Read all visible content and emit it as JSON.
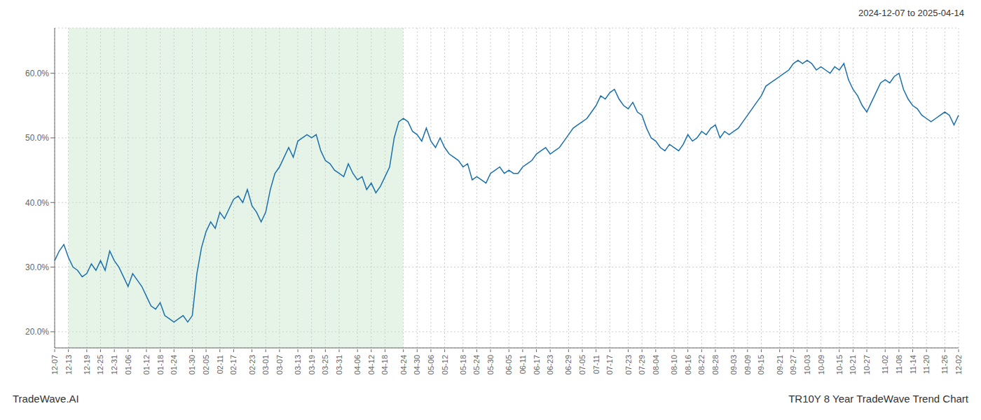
{
  "chart_data": {
    "type": "line",
    "title": "2024-12-07 to 2025-04-14",
    "annotations": [
      "TradeWave.AI",
      "TR10Y 8 Year TradeWave Trend Chart"
    ],
    "color": "#1a6fad",
    "grid": true,
    "ylim": [
      17.5,
      67.0
    ],
    "yticks": [
      {
        "value": 20.0,
        "label": "20.0%"
      },
      {
        "value": 30.0,
        "label": "30.0%"
      },
      {
        "value": 40.0,
        "label": "40.0%"
      },
      {
        "value": 50.0,
        "label": "50.0%"
      },
      {
        "value": 60.0,
        "label": "60.0%"
      }
    ],
    "shaded_span": {
      "start": "12-13",
      "end": "04-24",
      "color": "#c8e6c9"
    },
    "categories": [
      "12-07",
      null,
      null,
      "12-13",
      null,
      null,
      null,
      "12-19",
      null,
      null,
      "12-25",
      null,
      null,
      "12-31",
      null,
      null,
      "01-06",
      null,
      null,
      null,
      "01-12",
      null,
      null,
      "01-18",
      null,
      null,
      "01-24",
      null,
      null,
      null,
      "01-30",
      null,
      null,
      "02-05",
      null,
      null,
      "02-11",
      null,
      null,
      "02-17",
      null,
      null,
      null,
      "02-23",
      null,
      null,
      "03-01",
      null,
      null,
      "03-07",
      null,
      null,
      null,
      "03-13",
      null,
      null,
      "03-19",
      null,
      null,
      "03-25",
      null,
      null,
      "03-31",
      null,
      null,
      null,
      "04-06",
      null,
      null,
      "04-12",
      null,
      null,
      "04-18",
      null,
      null,
      null,
      "04-24",
      null,
      null,
      "04-30",
      null,
      null,
      "05-06",
      null,
      null,
      "05-12",
      null,
      null,
      null,
      "05-18",
      null,
      null,
      "05-24",
      null,
      null,
      "05-30",
      null,
      null,
      null,
      "06-05",
      null,
      null,
      "06-11",
      null,
      null,
      "06-17",
      null,
      null,
      "06-23",
      null,
      null,
      null,
      "06-29",
      null,
      null,
      "07-05",
      null,
      null,
      "07-11",
      null,
      null,
      "07-17",
      null,
      null,
      null,
      "07-23",
      null,
      null,
      "07-29",
      null,
      null,
      "08-04",
      null,
      null,
      null,
      "08-10",
      null,
      null,
      "08-16",
      null,
      null,
      "08-22",
      null,
      null,
      "08-28",
      null,
      null,
      null,
      "09-03",
      null,
      null,
      "09-09",
      null,
      null,
      "09-15",
      null,
      null,
      null,
      "09-21",
      null,
      null,
      "09-27",
      null,
      null,
      "10-03",
      null,
      null,
      "10-09",
      null,
      null,
      null,
      "10-15",
      null,
      null,
      "10-21",
      null,
      null,
      "10-27",
      null,
      null,
      null,
      "11-02",
      null,
      null,
      "11-08",
      null,
      null,
      "11-14",
      null,
      null,
      "11-20",
      null,
      null,
      null,
      "11-26",
      null,
      null,
      "12-02"
    ],
    "values": [
      31.0,
      32.5,
      33.5,
      31.5,
      30.0,
      29.5,
      28.5,
      29.0,
      30.5,
      29.5,
      31.0,
      29.5,
      32.5,
      31.0,
      30.0,
      28.5,
      27.0,
      29.0,
      28.0,
      27.0,
      25.5,
      24.0,
      23.5,
      24.5,
      22.5,
      22.0,
      21.5,
      22.0,
      22.5,
      21.5,
      22.5,
      29.0,
      33.0,
      35.5,
      37.0,
      36.0,
      38.5,
      37.5,
      39.0,
      40.5,
      41.0,
      40.0,
      42.0,
      39.5,
      38.5,
      37.0,
      38.5,
      42.0,
      44.5,
      45.5,
      47.0,
      48.5,
      47.0,
      49.5,
      50.0,
      50.5,
      50.0,
      50.5,
      48.0,
      46.5,
      46.0,
      45.0,
      44.5,
      44.0,
      46.0,
      44.5,
      43.5,
      44.0,
      42.0,
      43.0,
      41.5,
      42.5,
      44.0,
      45.5,
      50.0,
      52.5,
      53.0,
      52.5,
      51.0,
      50.5,
      49.5,
      51.5,
      49.5,
      48.5,
      50.0,
      48.5,
      47.5,
      47.0,
      46.5,
      45.5,
      46.0,
      43.5,
      44.0,
      43.5,
      43.0,
      44.5,
      45.0,
      45.5,
      44.5,
      45.0,
      44.5,
      44.5,
      45.5,
      46.0,
      46.5,
      47.5,
      48.0,
      48.5,
      47.5,
      48.0,
      48.5,
      49.5,
      50.5,
      51.5,
      52.0,
      52.5,
      53.0,
      54.0,
      55.0,
      56.5,
      56.0,
      57.0,
      57.5,
      56.0,
      55.0,
      54.5,
      55.5,
      54.0,
      53.5,
      51.5,
      50.0,
      49.5,
      48.5,
      48.0,
      49.0,
      48.5,
      48.0,
      49.0,
      50.5,
      49.5,
      50.0,
      51.0,
      50.5,
      51.5,
      52.0,
      50.0,
      51.0,
      50.5,
      51.0,
      51.5,
      52.5,
      53.5,
      54.5,
      55.5,
      56.5,
      58.0,
      58.5,
      59.0,
      59.5,
      60.0,
      60.5,
      61.5,
      62.0,
      61.5,
      62.0,
      61.5,
      60.5,
      61.0,
      60.5,
      60.0,
      61.0,
      60.5,
      61.5,
      59.0,
      57.5,
      56.5,
      55.0,
      54.0,
      55.5,
      57.0,
      58.5,
      59.0,
      58.5,
      59.5,
      60.0,
      57.5,
      56.0,
      55.0,
      54.5,
      53.5,
      53.0,
      52.5,
      53.0,
      53.5,
      54.0,
      53.5,
      52.0,
      53.5
    ]
  }
}
